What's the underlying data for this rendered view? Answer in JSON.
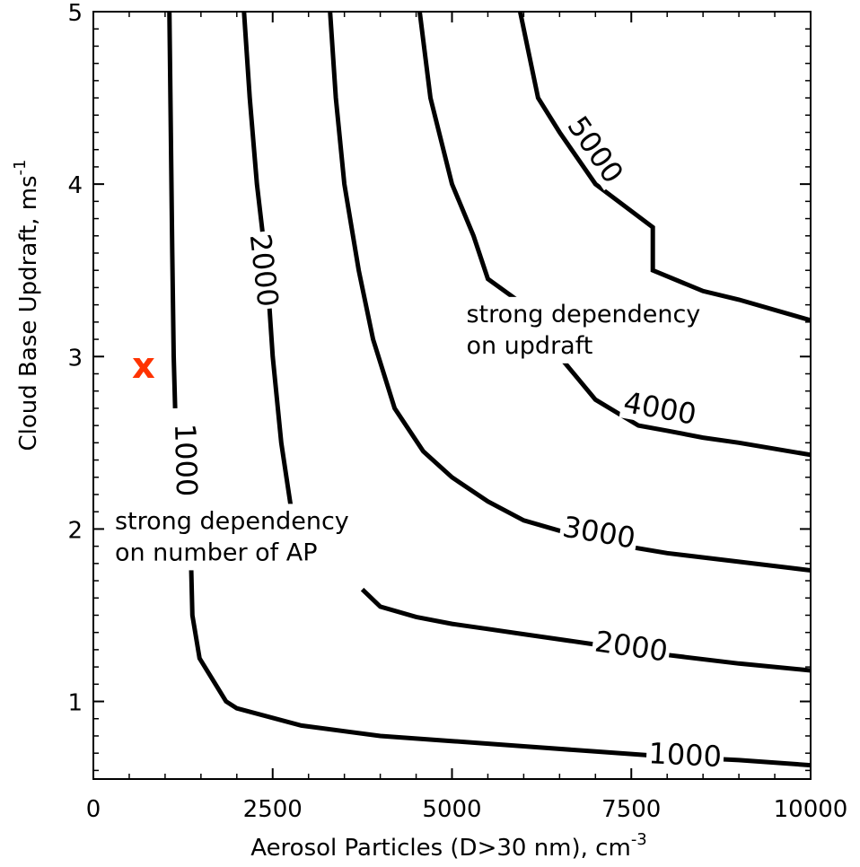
{
  "chart_data": {
    "type": "contour",
    "xlabel": "Aerosol Particles (D>30 nm), cm",
    "xlabel_sup": "-3",
    "ylabel": "Cloud Base Updraft, ms",
    "ylabel_sup": "-1",
    "xlim": [
      0,
      10000
    ],
    "ylim": [
      0.55,
      5
    ],
    "x_ticks": [
      0,
      2500,
      5000,
      7500,
      10000
    ],
    "x_tick_labels": [
      "0",
      "2500",
      "5000",
      "7500",
      "10000"
    ],
    "y_ticks": [
      1,
      2,
      3,
      4,
      5
    ],
    "y_tick_labels": [
      "1",
      "2",
      "3",
      "4",
      "5"
    ],
    "grid": false,
    "contours": [
      {
        "branch": "lower",
        "level": 1000,
        "label": "1000",
        "points": [
          [
            1350,
            2
          ],
          [
            1380,
            1.5
          ],
          [
            1480,
            1.25
          ],
          [
            1850,
            1
          ],
          [
            2000,
            0.96
          ],
          [
            2900,
            0.86
          ],
          [
            4000,
            0.8
          ],
          [
            5000,
            0.77
          ],
          [
            6000,
            0.74
          ],
          [
            7000,
            0.71
          ],
          [
            8000,
            0.68
          ],
          [
            9000,
            0.66
          ],
          [
            10000,
            0.63
          ]
        ],
        "label_at": [
          8250,
          0.69
        ]
      },
      {
        "branch": "upper",
        "level": 1000,
        "label": "1000",
        "points": [
          [
            1060,
            5
          ],
          [
            1080,
            4.3
          ],
          [
            1100,
            3.6
          ],
          [
            1120,
            3
          ],
          [
            1140,
            2.7
          ]
        ],
        "label_at": [
          1290,
          2.4
        ]
      },
      {
        "branch": "lower",
        "level": 2000,
        "label": "2000",
        "points": [
          [
            3750,
            1.65
          ],
          [
            4000,
            1.55
          ],
          [
            4500,
            1.49
          ],
          [
            5000,
            1.45
          ],
          [
            5500,
            1.42
          ],
          [
            6000,
            1.39
          ],
          [
            7000,
            1.33
          ],
          [
            8000,
            1.27
          ],
          [
            9000,
            1.22
          ],
          [
            10000,
            1.18
          ]
        ],
        "label_at": [
          7500,
          1.32
        ]
      },
      {
        "branch": "upper",
        "level": 2000,
        "label": "2000",
        "points": [
          [
            2100,
            5
          ],
          [
            2180,
            4.5
          ],
          [
            2280,
            4
          ],
          [
            2420,
            3.5
          ],
          [
            2500,
            3
          ],
          [
            2620,
            2.5
          ],
          [
            2800,
            2
          ]
        ],
        "label_at": [
          2380,
          3.5
        ]
      },
      {
        "branch": "full",
        "level": 3000,
        "label": "3000",
        "points": [
          [
            3300,
            5
          ],
          [
            3380,
            4.5
          ],
          [
            3500,
            4
          ],
          [
            3700,
            3.5
          ],
          [
            3900,
            3.1
          ],
          [
            4200,
            2.7
          ],
          [
            4600,
            2.45
          ],
          [
            5000,
            2.3
          ],
          [
            5500,
            2.16
          ],
          [
            6000,
            2.05
          ],
          [
            7000,
            1.93
          ],
          [
            8000,
            1.86
          ],
          [
            9000,
            1.81
          ],
          [
            10000,
            1.76
          ]
        ],
        "label_at": [
          7050,
          1.98
        ]
      },
      {
        "branch": "full",
        "level": 4000,
        "label": "4000",
        "points": [
          [
            4550,
            5
          ],
          [
            4700,
            4.5
          ],
          [
            5000,
            4
          ],
          [
            5300,
            3.7
          ],
          [
            5500,
            3.45
          ],
          [
            6000,
            3.3
          ],
          [
            6500,
            3
          ],
          [
            7000,
            2.75
          ],
          [
            7600,
            2.6
          ],
          [
            8000,
            2.57
          ],
          [
            8500,
            2.53
          ],
          [
            9000,
            2.5
          ],
          [
            10000,
            2.43
          ]
        ],
        "label_at": [
          7900,
          2.7
        ]
      },
      {
        "branch": "full",
        "level": 5000,
        "label": "5000",
        "points": [
          [
            5950,
            5
          ],
          [
            6200,
            4.5
          ],
          [
            6500,
            4.3
          ],
          [
            7000,
            4
          ],
          [
            7800,
            3.75
          ],
          [
            7800,
            3.5
          ],
          [
            8500,
            3.38
          ],
          [
            9000,
            3.33
          ],
          [
            10000,
            3.21
          ]
        ],
        "label_at": [
          7000,
          4.2
        ]
      }
    ],
    "annotations": [
      {
        "text_line1": "strong dependency",
        "text_line2": "on updraft",
        "x": 5200,
        "y": 3.2
      },
      {
        "text_line1": "strong dependency",
        "text_line2": "on number of AP",
        "x": 300,
        "y": 2.0
      }
    ],
    "marker": {
      "symbol": "x",
      "x": 700,
      "y": 2.95,
      "color": "#ff3300"
    }
  }
}
